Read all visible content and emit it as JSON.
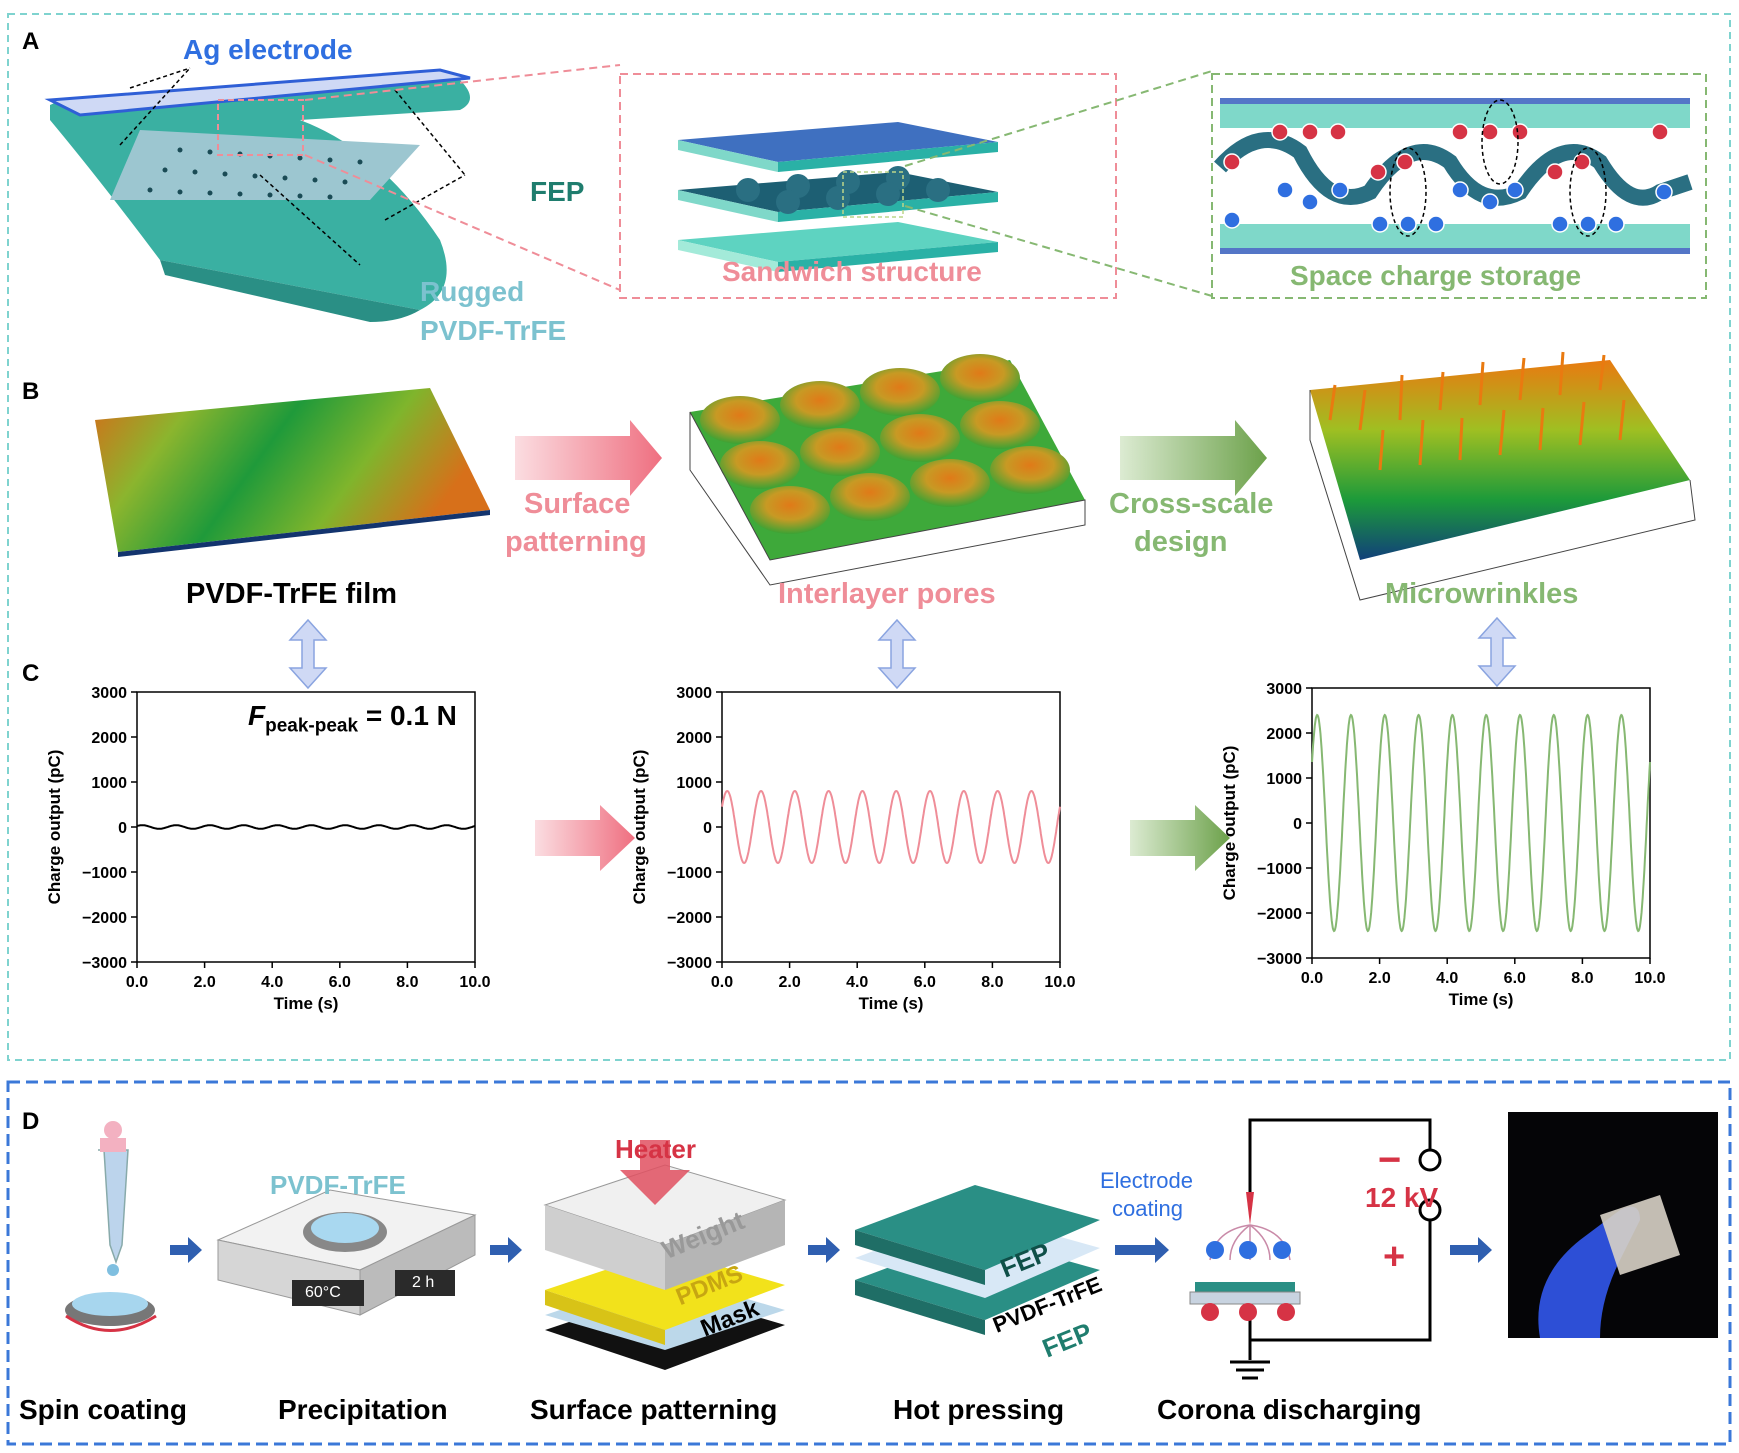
{
  "panels": {
    "a": "A",
    "b": "B",
    "c": "C",
    "d": "D"
  },
  "panelA": {
    "ag_electrode": "Ag electrode",
    "fep": "FEP",
    "rugged_line1": "Rugged",
    "rugged_line2": "PVDF-TrFE",
    "sandwich": "Sandwich structure",
    "space_charge": "Space charge storage"
  },
  "panelB": {
    "film": "PVDF-TrFE film",
    "surface_line1": "Surface",
    "surface_line2": "patterning",
    "pores": "Interlayer pores",
    "cross_line1": "Cross-scale",
    "cross_line2": "design",
    "wrinkles": "Microwrinkles"
  },
  "panelC": {
    "force_symbol": "F",
    "force_sub": "peak-peak",
    "force_value": "= 0.1 N"
  },
  "panelD": {
    "spin": "Spin coating",
    "precip": "Precipitation",
    "patterning": "Surface patterning",
    "hot": "Hot pressing",
    "corona": "Corona discharging",
    "pvdf": "PVDF-TrFE",
    "temp": "60°C",
    "time": "2 h",
    "heater": "Heater",
    "weight": "Weight",
    "pdms": "PDMS",
    "mask": "Mask",
    "fep_top": "FEP",
    "pvdf_mid": "PVDF-TrFE",
    "fep_bottom": "FEP",
    "electrode_line1": "Electrode",
    "electrode_line2": "coating",
    "voltage": "12 kV",
    "minus": "−",
    "plus": "+"
  },
  "colors": {
    "pink": "#ef8d98",
    "green": "#86b872",
    "blue": "#2f6fe0",
    "teal": "#1f7d6e",
    "black": "#000000"
  },
  "chart_data": [
    {
      "type": "line",
      "ylabel": "Charge output (pC)",
      "xlabel": "Time (s)",
      "xlim": [
        0,
        10
      ],
      "ylim": [
        -3000,
        3000
      ],
      "xticks": [
        "0.0",
        "2.0",
        "4.0",
        "6.0",
        "8.0",
        "10.0"
      ],
      "yticks": [
        "3000",
        "2000",
        "1000",
        "0",
        "−1000",
        "−2000",
        "−3000"
      ],
      "series": [
        {
          "amplitude": 40,
          "periods": 10,
          "color": "#000000"
        }
      ]
    },
    {
      "type": "line",
      "ylabel": "Charge output (pC)",
      "xlabel": "Time (s)",
      "xlim": [
        0,
        10
      ],
      "ylim": [
        -3000,
        3000
      ],
      "xticks": [
        "0.0",
        "2.0",
        "4.0",
        "6.0",
        "8.0",
        "10.0"
      ],
      "yticks": [
        "3000",
        "2000",
        "1000",
        "0",
        "−1000",
        "−2000",
        "−3000"
      ],
      "series": [
        {
          "amplitude": 800,
          "periods": 10,
          "color": "#ef8d98"
        }
      ]
    },
    {
      "type": "line",
      "ylabel": "Charge output (pC)",
      "xlabel": "Time (s)",
      "xlim": [
        0,
        10
      ],
      "ylim": [
        -3000,
        3000
      ],
      "xticks": [
        "0.0",
        "2.0",
        "4.0",
        "6.0",
        "8.0",
        "10.0"
      ],
      "yticks": [
        "3000",
        "2000",
        "1000",
        "0",
        "−1000",
        "−2000",
        "−3000"
      ],
      "series": [
        {
          "amplitude": 2400,
          "periods": 10,
          "color": "#86b872"
        }
      ]
    }
  ]
}
